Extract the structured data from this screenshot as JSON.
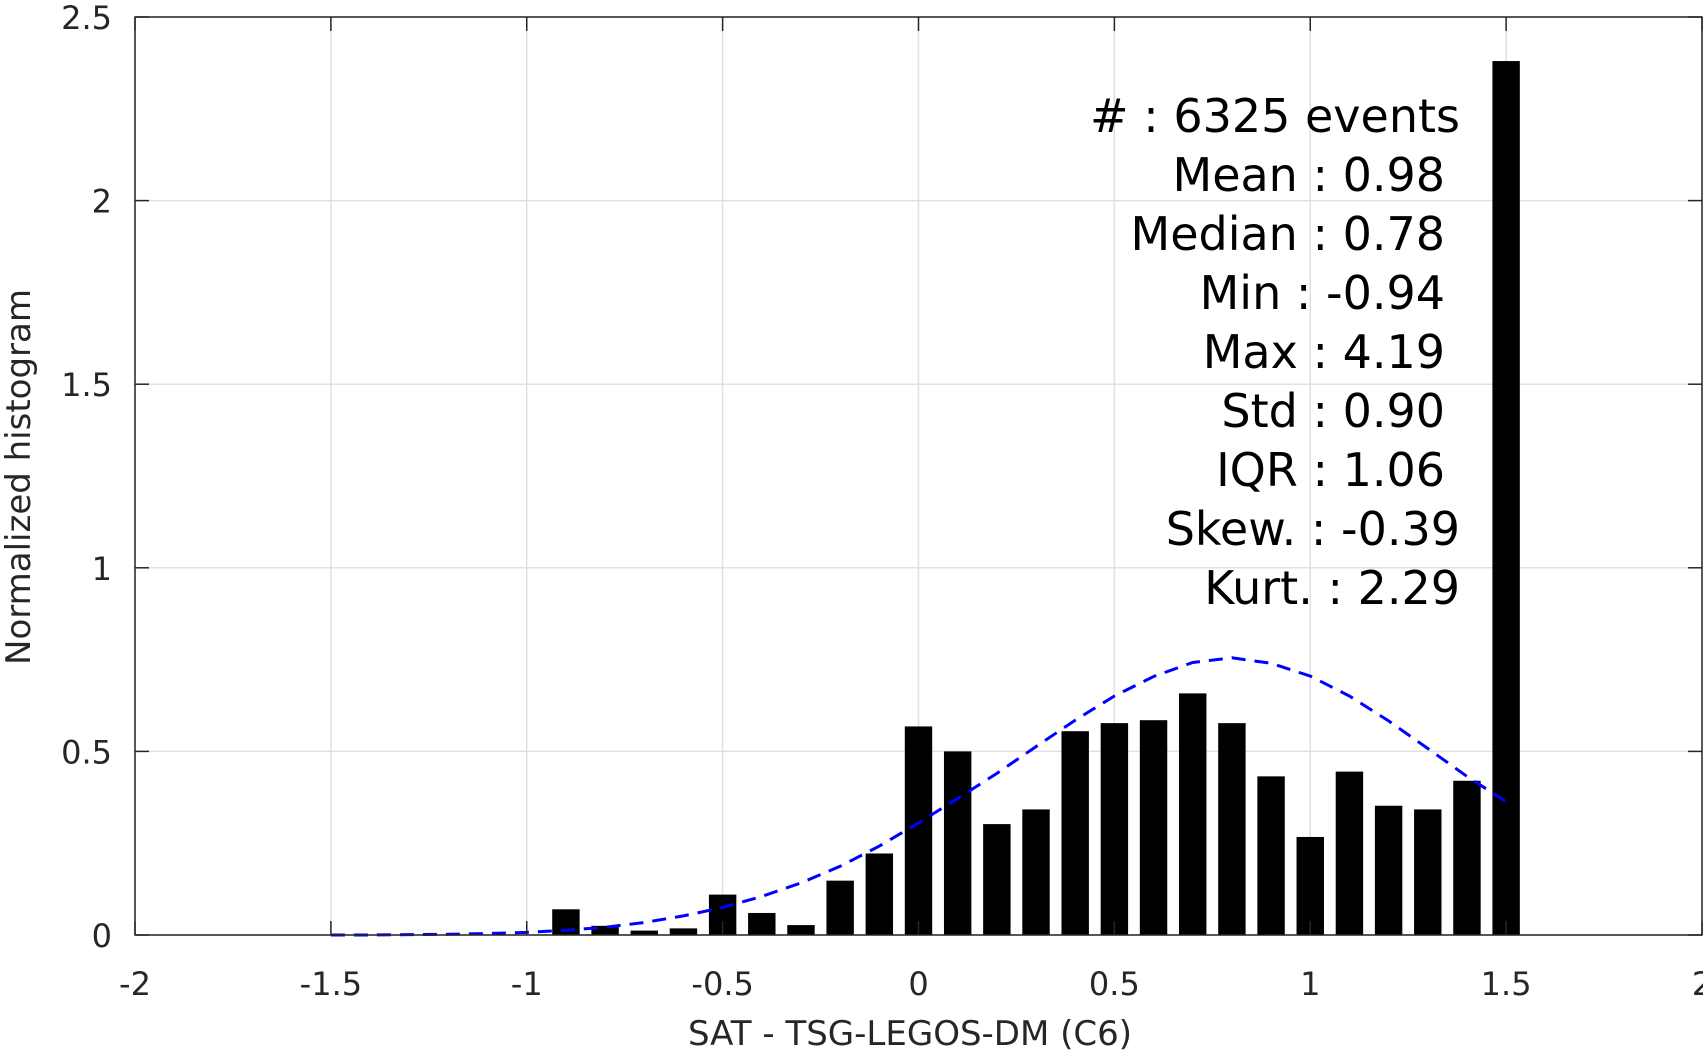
{
  "chart_data": {
    "type": "bar",
    "title": "",
    "xlabel": "SAT - TSG-LEGOS-DM (C6)",
    "ylabel": "Normalized histogram",
    "xlim": [
      -2,
      2
    ],
    "ylim": [
      0,
      2.5
    ],
    "grid": true,
    "x_ticks": [
      -2,
      -1.5,
      -1,
      -0.5,
      0,
      0.5,
      1,
      1.5,
      2
    ],
    "x_tick_labels": [
      "-2",
      "-1.5",
      "-1",
      "-0.5",
      "0",
      "0.5",
      "1",
      "1.5",
      "2"
    ],
    "y_ticks": [
      0,
      0.5,
      1,
      1.5,
      2,
      2.5
    ],
    "y_tick_labels": [
      "0",
      "0.5",
      "1",
      "1.5",
      "2",
      "2.5"
    ],
    "bar_width": 0.07,
    "bars": {
      "x": [
        -0.9,
        -0.8,
        -0.7,
        -0.6,
        -0.5,
        -0.4,
        -0.3,
        -0.2,
        -0.1,
        0.0,
        0.1,
        0.2,
        0.3,
        0.4,
        0.5,
        0.6,
        0.7,
        0.8,
        0.9,
        1.0,
        1.1,
        1.2,
        1.3,
        1.4,
        1.5
      ],
      "values": [
        0.07,
        0.025,
        0.012,
        0.018,
        0.11,
        0.06,
        0.027,
        0.148,
        0.222,
        0.568,
        0.5,
        0.302,
        0.342,
        0.555,
        0.577,
        0.585,
        0.658,
        0.577,
        0.432,
        0.267,
        0.445,
        0.352,
        0.342,
        0.42,
        2.38
      ],
      "color": "#000000"
    },
    "series": [
      {
        "type": "line",
        "style": "dashed",
        "color": "#0000ff",
        "x": [
          -1.5,
          -1.4,
          -1.3,
          -1.2,
          -1.1,
          -1.0,
          -0.9,
          -0.8,
          -0.7,
          -0.6,
          -0.5,
          -0.4,
          -0.3,
          -0.2,
          -0.1,
          0.0,
          0.1,
          0.2,
          0.3,
          0.4,
          0.5,
          0.6,
          0.7,
          0.8,
          0.9,
          1.0,
          1.1,
          1.2,
          1.3,
          1.4,
          1.5
        ],
        "y": [
          0.0,
          0.0,
          0.001,
          0.002,
          0.004,
          0.007,
          0.013,
          0.021,
          0.034,
          0.052,
          0.075,
          0.105,
          0.142,
          0.187,
          0.242,
          0.305,
          0.372,
          0.44,
          0.513,
          0.585,
          0.651,
          0.704,
          0.742,
          0.755,
          0.74,
          0.705,
          0.651,
          0.583,
          0.508,
          0.432,
          0.363
        ]
      }
    ],
    "annotations": {
      "lines": [
        "#  : 6325 events",
        "Mean : 0.98",
        "Median : 0.78",
        "Min : -0.94",
        "Max : 4.19",
        "Std : 0.90",
        "IQR : 1.06",
        "Skew. : -0.39",
        "Kurt. : 2.29"
      ]
    }
  }
}
